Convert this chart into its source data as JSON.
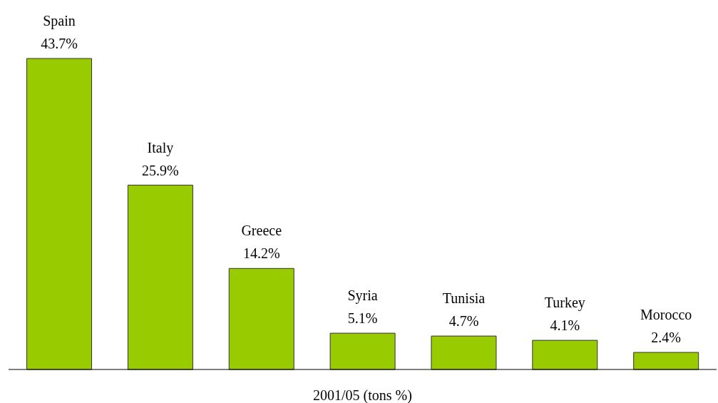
{
  "chart_data": {
    "type": "bar",
    "xlabel": "2001/05 (tons %)",
    "categories": [
      "Spain",
      "Italy",
      "Greece",
      "Syria",
      "Tunisia",
      "Turkey",
      "Morocco"
    ],
    "values": [
      43.7,
      25.9,
      14.2,
      5.1,
      4.7,
      4.1,
      2.4
    ],
    "value_labels": [
      "43.7%",
      "25.9%",
      "14.2%",
      "5.1%",
      "4.7%",
      "4.1%",
      "2.4%"
    ],
    "color": "#99cc00"
  }
}
